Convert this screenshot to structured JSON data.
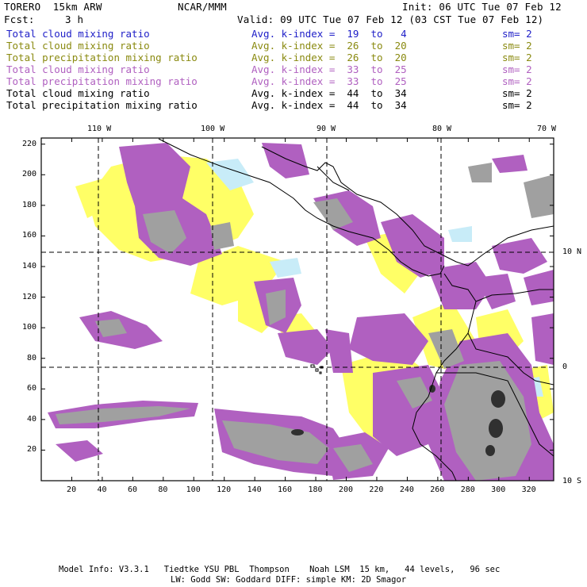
{
  "header": {
    "model": "TORERO  15km ARW",
    "org": "NCAR/MMM",
    "init": "Init: 06 UTC Tue 07 Feb 12",
    "fcst_label": "Fcst:",
    "fcst_value": "3 h",
    "valid": "Valid: 09 UTC Tue 07 Feb 12 (03 CST Tue 07 Feb 12)"
  },
  "legend": [
    {
      "field": "Total cloud mixing ratio",
      "kindex": "Avg. k-index =  19  to   4",
      "sm": "sm= 2",
      "color": "#2020c8"
    },
    {
      "field": "Total cloud mixing ratio",
      "kindex": "Avg. k-index =  26  to  20",
      "sm": "sm= 2",
      "color": "#8a8a10"
    },
    {
      "field": "Total precipitation mixing ratio",
      "kindex": "Avg. k-index =  26  to  20",
      "sm": "sm= 2",
      "color": "#8a8a10"
    },
    {
      "field": "Total cloud mixing ratio",
      "kindex": "Avg. k-index =  33  to  25",
      "sm": "sm= 2",
      "color": "#b060c0"
    },
    {
      "field": "Total precipitation mixing ratio",
      "kindex": "Avg. k-index =  33  to  25",
      "sm": "sm= 2",
      "color": "#b060c0"
    },
    {
      "field": "Total cloud mixing ratio",
      "kindex": "Avg. k-index =  44  to  34",
      "sm": "sm= 2",
      "color": "#000000"
    },
    {
      "field": "Total precipitation mixing ratio",
      "kindex": "Avg. k-index =  44  to  34",
      "sm": "sm= 2",
      "color": "#000000"
    }
  ],
  "map": {
    "lon_labels": [
      "110 W",
      "100 W",
      "90 W",
      "80 W",
      "70 W"
    ],
    "lat_labels": [
      "10 N",
      "0",
      "10 S"
    ],
    "x_ticks": [
      "20",
      "40",
      "60",
      "80",
      "100",
      "120",
      "140",
      "160",
      "180",
      "200",
      "220",
      "240",
      "260",
      "280",
      "300",
      "320"
    ],
    "y_ticks": [
      "220",
      "200",
      "180",
      "160",
      "140",
      "120",
      "100",
      "80",
      "60",
      "40",
      "20"
    ],
    "colors": {
      "yellow": "#ffff66",
      "purple": "#b060c0",
      "gray": "#a0a0a0",
      "dark": "#303030",
      "cyan": "#c8ecf8"
    }
  },
  "footer": {
    "line1": "Model Info: V3.3.1   Tiedtke YSU PBL  Thompson    Noah LSM  15 km,   44 levels,   96 sec",
    "line2": "LW: Godd SW: Goddard DIFF: simple KM: 2D Smagor"
  }
}
